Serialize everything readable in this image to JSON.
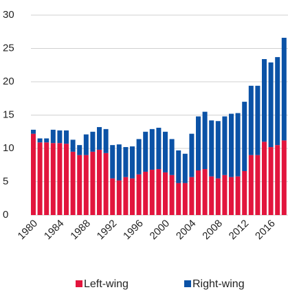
{
  "chart_data": {
    "type": "stacked_bar",
    "categories": [
      "1980",
      null,
      null,
      null,
      "1984",
      null,
      null,
      null,
      "1988",
      null,
      null,
      null,
      "1992",
      null,
      null,
      null,
      "1996",
      null,
      null,
      null,
      "2000",
      null,
      null,
      null,
      "2004",
      null,
      null,
      null,
      "2008",
      null,
      null,
      null,
      "2012",
      null,
      null,
      null,
      "2016",
      null,
      null
    ],
    "series": [
      {
        "name": "Left-wing",
        "color": "#e2153d",
        "values": [
          12.2,
          10.9,
          10.9,
          10.8,
          10.8,
          10.7,
          9.5,
          9.0,
          9.0,
          9.5,
          9.8,
          9.3,
          5.5,
          5.2,
          5.7,
          5.5,
          6.1,
          6.5,
          6.8,
          6.9,
          6.4,
          6.0,
          4.8,
          4.8,
          5.7,
          6.7,
          6.9,
          5.8,
          5.5,
          6.0,
          5.7,
          5.8,
          6.6,
          9.0,
          9.0,
          11.0,
          10.2,
          10.5,
          11.2
        ]
      },
      {
        "name": "Right-wing",
        "color": "#0b52a6",
        "values": [
          0.6,
          0.6,
          0.6,
          2.0,
          1.9,
          2.0,
          1.8,
          1.5,
          3.1,
          3.0,
          3.4,
          3.6,
          5.0,
          5.4,
          4.5,
          4.8,
          5.3,
          6.0,
          6.1,
          6.2,
          6.1,
          5.4,
          4.9,
          4.4,
          6.5,
          8.1,
          8.6,
          8.4,
          8.6,
          8.8,
          9.5,
          9.5,
          10.4,
          10.4,
          10.4,
          12.4,
          12.7,
          13.2,
          15.4
        ]
      }
    ],
    "ylim": [
      0,
      30
    ],
    "yticks": [
      0,
      5,
      10,
      15,
      20,
      25,
      30
    ],
    "grid": true,
    "legend": "bottom"
  }
}
